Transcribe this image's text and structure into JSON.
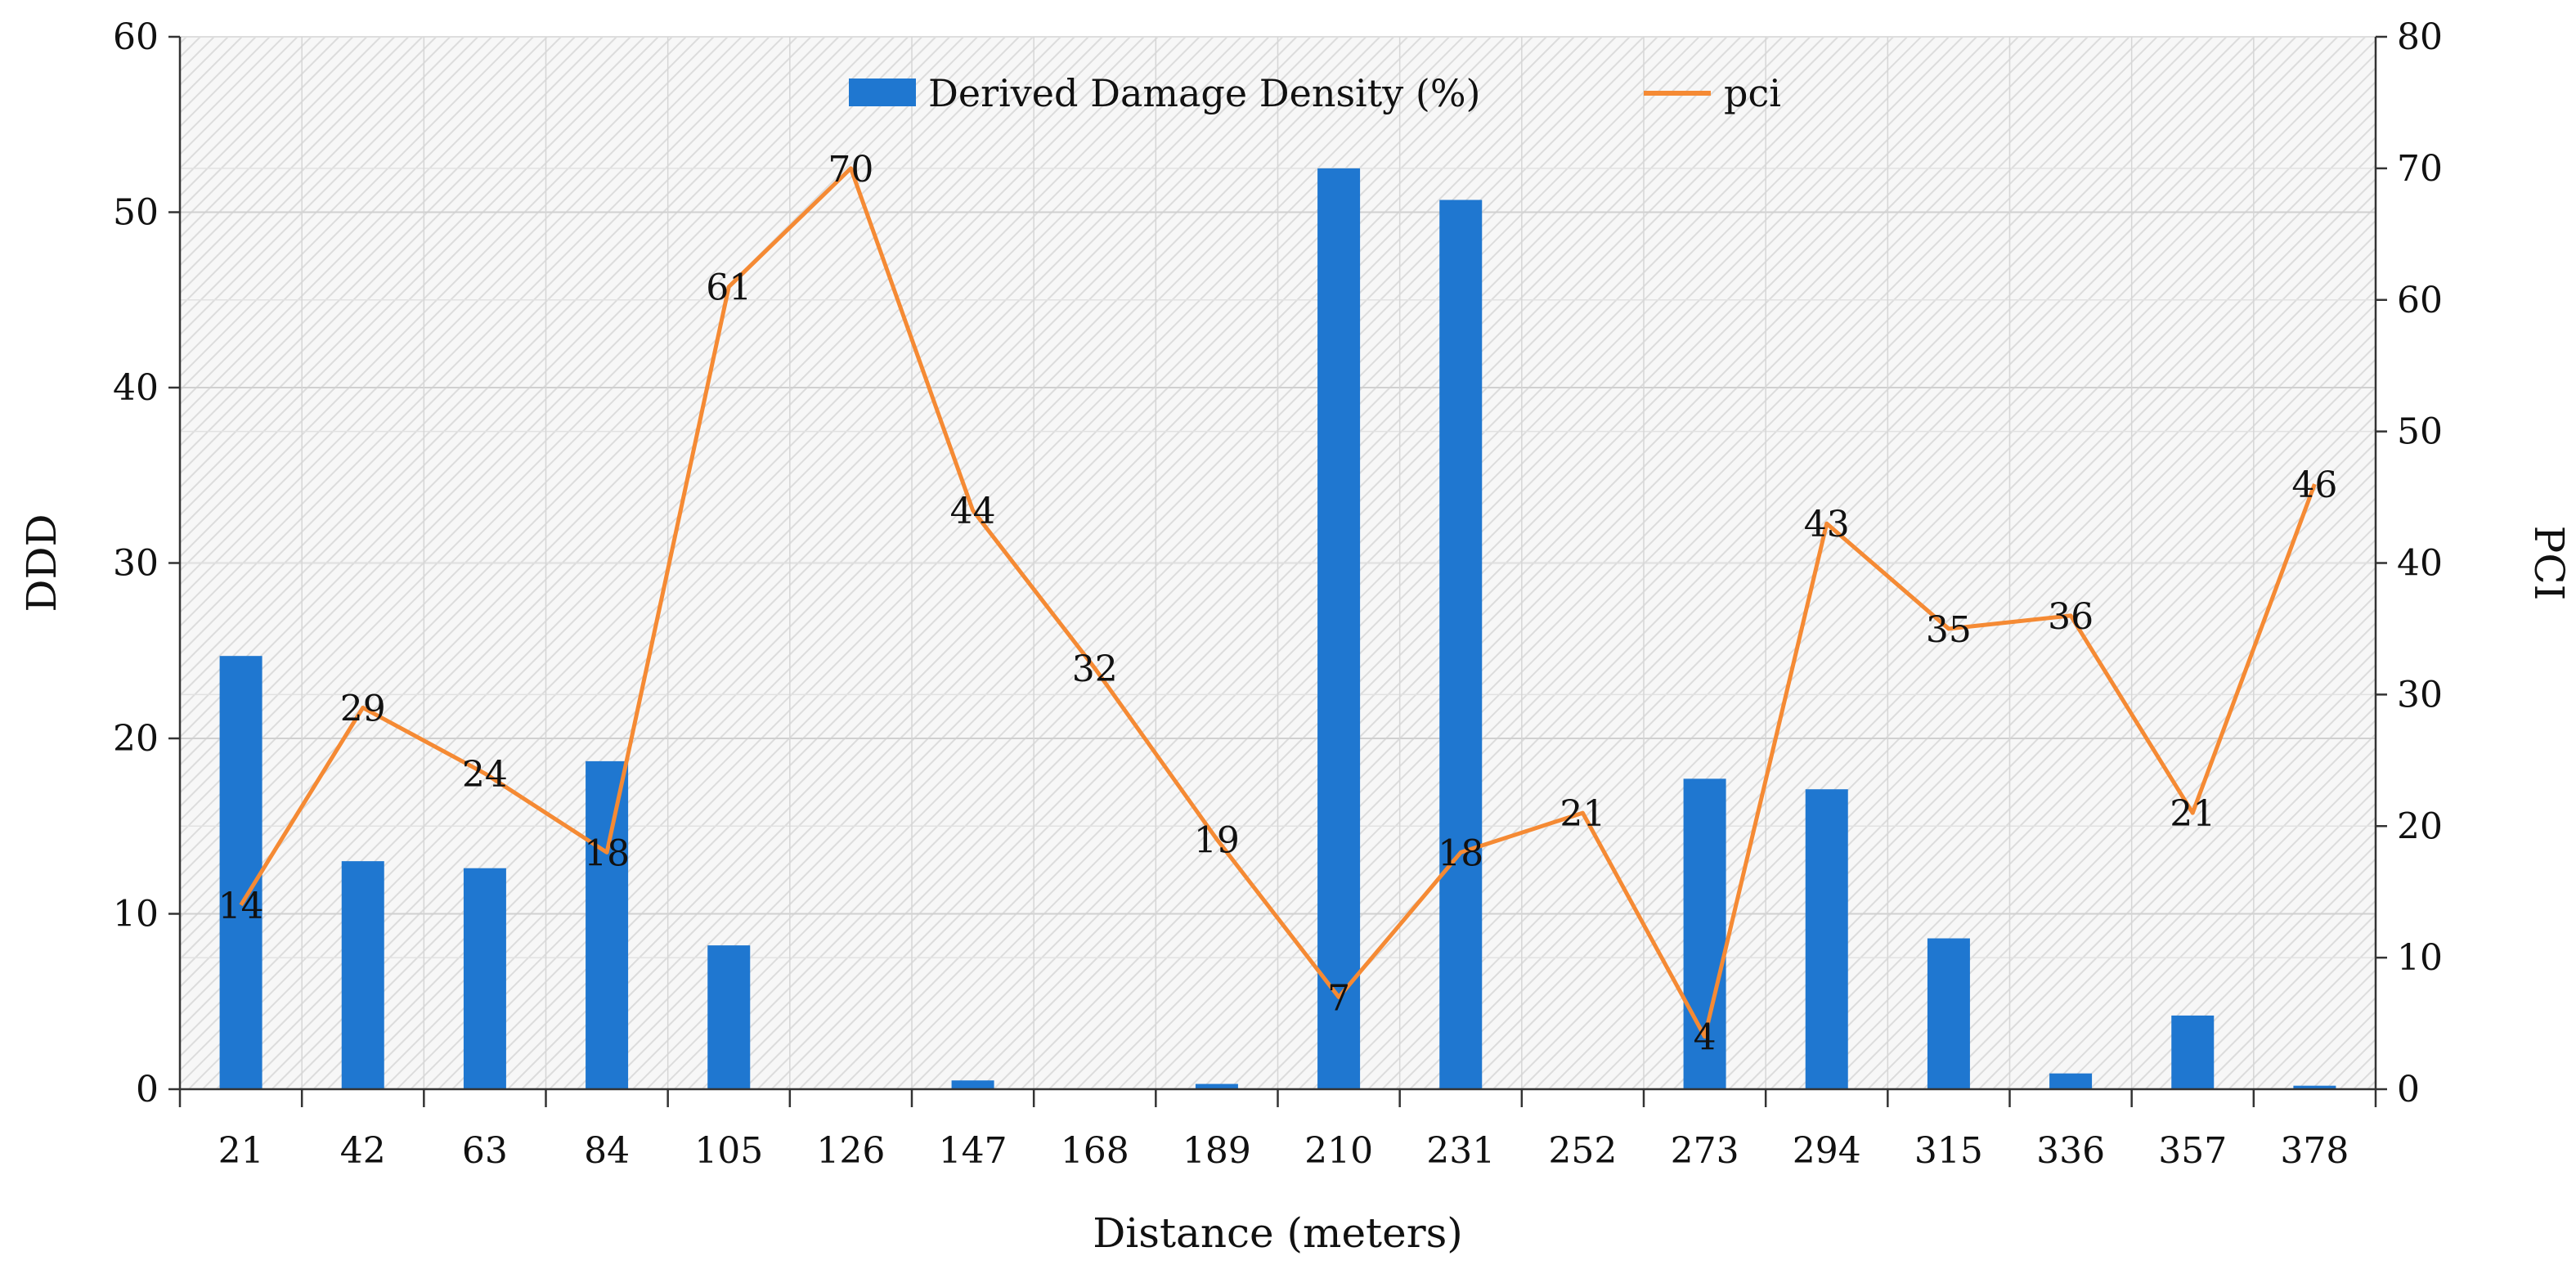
{
  "chart_data": {
    "type": "bar+line",
    "categories": [
      "21",
      "42",
      "63",
      "84",
      "105",
      "126",
      "147",
      "168",
      "189",
      "210",
      "231",
      "252",
      "273",
      "294",
      "315",
      "336",
      "357",
      "378"
    ],
    "xlabel": "Distance (meters)",
    "ylabel_left": "DDD",
    "ylabel_right": "PCI",
    "ylim_left": [
      0,
      60
    ],
    "ylim_right": [
      0,
      80
    ],
    "yticks_left": [
      "0",
      "10",
      "20",
      "30",
      "40",
      "50",
      "60"
    ],
    "yticks_right": [
      "0",
      "10",
      "20",
      "30",
      "40",
      "50",
      "60",
      "70",
      "80"
    ],
    "grid": true,
    "legend_position": "top-center",
    "series": [
      {
        "name": "Derived Damage Density (%)",
        "type": "bar",
        "axis": "left",
        "color": "#1f77d0",
        "values": [
          24.7,
          13.0,
          12.6,
          18.7,
          8.2,
          0,
          0.5,
          0,
          0.3,
          52.5,
          50.7,
          0,
          17.7,
          17.1,
          8.6,
          0.9,
          4.2,
          0.2
        ]
      },
      {
        "name": "pci",
        "type": "line",
        "axis": "right",
        "color": "#f58a34",
        "values": [
          14,
          29,
          24,
          18,
          61,
          70,
          44,
          32,
          19,
          7,
          18,
          21,
          4,
          43,
          35,
          36,
          21,
          46
        ],
        "data_labels": [
          "14",
          "29",
          "24",
          "18",
          "61",
          "70",
          "44",
          "32",
          "19",
          "7",
          "18",
          "21",
          "4",
          "43",
          "35",
          "36",
          "21",
          "46"
        ]
      }
    ]
  }
}
